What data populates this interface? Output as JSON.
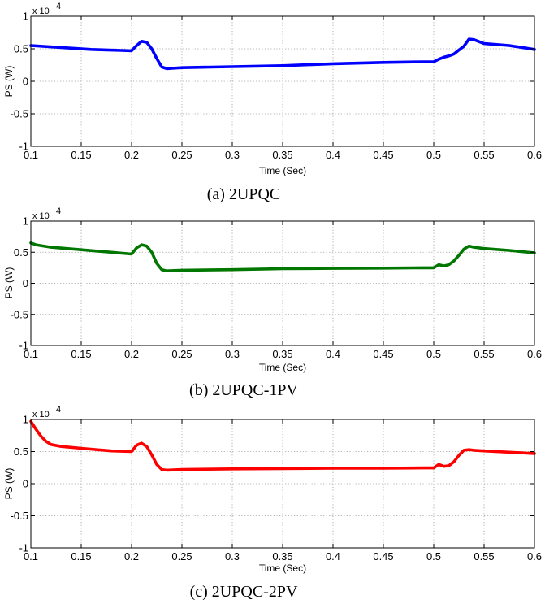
{
  "chart_data": [
    {
      "type": "line",
      "caption": "(a) 2UPQC",
      "xlabel": "Time (Sec)",
      "ylabel": "PS (W)",
      "y_multiplier": "x 10",
      "y_multiplier_exp": "4",
      "xlim": [
        0.1,
        0.6
      ],
      "ylim": [
        -1,
        1
      ],
      "xticks": [
        "0.1",
        "0.15",
        "0.2",
        "0.25",
        "0.3",
        "0.35",
        "0.4",
        "0.45",
        "0.5",
        "0.55",
        "0.6"
      ],
      "yticks": [
        "-1",
        "-0.5",
        "0",
        "0.5",
        "1"
      ],
      "grid": true,
      "series": [
        {
          "color": "#0000ff",
          "x": [
            0.1,
            0.13,
            0.16,
            0.19,
            0.2,
            0.205,
            0.21,
            0.215,
            0.22,
            0.225,
            0.23,
            0.235,
            0.24,
            0.25,
            0.3,
            0.35,
            0.4,
            0.45,
            0.49,
            0.5,
            0.505,
            0.51,
            0.515,
            0.52,
            0.525,
            0.53,
            0.535,
            0.54,
            0.55,
            0.575,
            0.6
          ],
          "y": [
            0.55,
            0.52,
            0.49,
            0.475,
            0.47,
            0.55,
            0.615,
            0.6,
            0.5,
            0.35,
            0.22,
            0.195,
            0.2,
            0.21,
            0.225,
            0.24,
            0.27,
            0.29,
            0.3,
            0.3,
            0.34,
            0.37,
            0.39,
            0.42,
            0.48,
            0.54,
            0.65,
            0.64,
            0.58,
            0.55,
            0.49
          ]
        }
      ]
    },
    {
      "type": "line",
      "caption": "(b) 2UPQC-1PV",
      "xlabel": "Time (Sec)",
      "ylabel": "PS (W)",
      "y_multiplier": "x 10",
      "y_multiplier_exp": "4",
      "xlim": [
        0.1,
        0.6
      ],
      "ylim": [
        -1,
        1
      ],
      "xticks": [
        "0.1",
        "0.15",
        "0.2",
        "0.25",
        "0.3",
        "0.35",
        "0.4",
        "0.45",
        "0.5",
        "0.55",
        "0.6"
      ],
      "yticks": [
        "-1",
        "-0.5",
        "0",
        "0.5",
        "1"
      ],
      "grid": true,
      "series": [
        {
          "color": "#007700",
          "x": [
            0.1,
            0.105,
            0.12,
            0.15,
            0.18,
            0.2,
            0.205,
            0.21,
            0.215,
            0.22,
            0.225,
            0.23,
            0.235,
            0.25,
            0.3,
            0.35,
            0.4,
            0.45,
            0.49,
            0.5,
            0.505,
            0.51,
            0.515,
            0.52,
            0.525,
            0.53,
            0.535,
            0.54,
            0.55,
            0.575,
            0.6
          ],
          "y": [
            0.65,
            0.62,
            0.58,
            0.54,
            0.5,
            0.47,
            0.57,
            0.62,
            0.6,
            0.5,
            0.32,
            0.22,
            0.2,
            0.21,
            0.22,
            0.235,
            0.24,
            0.245,
            0.25,
            0.25,
            0.3,
            0.28,
            0.3,
            0.36,
            0.45,
            0.55,
            0.6,
            0.58,
            0.56,
            0.53,
            0.49
          ]
        }
      ]
    },
    {
      "type": "line",
      "caption": "(c) 2UPQC-2PV",
      "xlabel": "Time (Sec)",
      "ylabel": "PS (W)",
      "y_multiplier": "x 10",
      "y_multiplier_exp": "4",
      "xlim": [
        0.1,
        0.6
      ],
      "ylim": [
        -1,
        1
      ],
      "xticks": [
        "0.1",
        "0.15",
        "0.2",
        "0.25",
        "0.3",
        "0.35",
        "0.4",
        "0.45",
        "0.5",
        "0.55",
        "0.6"
      ],
      "yticks": [
        "-1",
        "-0.5",
        "0",
        "0.5",
        "1"
      ],
      "grid": true,
      "series": [
        {
          "color": "#ff0000",
          "x": [
            0.1,
            0.105,
            0.11,
            0.115,
            0.12,
            0.13,
            0.15,
            0.18,
            0.2,
            0.205,
            0.21,
            0.215,
            0.22,
            0.225,
            0.23,
            0.235,
            0.25,
            0.3,
            0.35,
            0.4,
            0.45,
            0.49,
            0.5,
            0.505,
            0.51,
            0.515,
            0.52,
            0.525,
            0.53,
            0.535,
            0.54,
            0.55,
            0.575,
            0.6
          ],
          "y": [
            0.97,
            0.85,
            0.74,
            0.66,
            0.61,
            0.58,
            0.55,
            0.51,
            0.5,
            0.6,
            0.63,
            0.58,
            0.45,
            0.3,
            0.22,
            0.21,
            0.22,
            0.23,
            0.235,
            0.24,
            0.24,
            0.245,
            0.245,
            0.3,
            0.27,
            0.28,
            0.34,
            0.44,
            0.52,
            0.53,
            0.52,
            0.51,
            0.49,
            0.47
          ]
        }
      ]
    }
  ]
}
